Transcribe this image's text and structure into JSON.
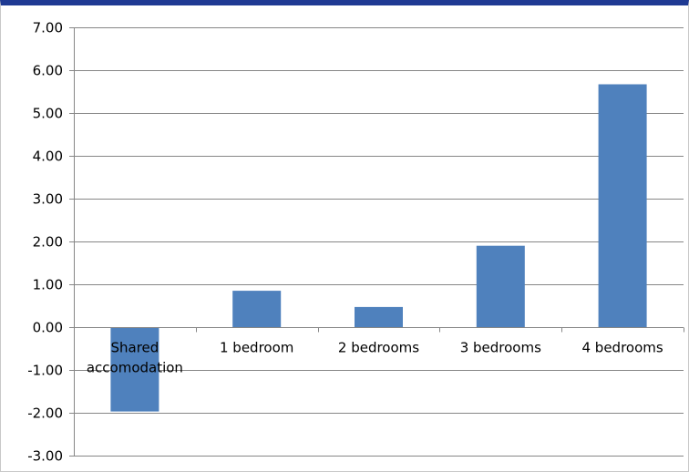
{
  "chart_data": {
    "type": "bar",
    "title": "",
    "xlabel": "",
    "ylabel": "",
    "categories": [
      [
        "Shared",
        "accomodation"
      ],
      [
        "1 bedroom"
      ],
      [
        "2 bedrooms"
      ],
      [
        "3 bedrooms"
      ],
      [
        "4 bedrooms"
      ]
    ],
    "values": [
      -1.97,
      0.85,
      0.47,
      1.9,
      5.67
    ],
    "ylim": [
      -3,
      7
    ],
    "yticks": [
      "-3.00",
      "-2.00",
      "-1.00",
      "0.00",
      "1.00",
      "2.00",
      "3.00",
      "4.00",
      "5.00",
      "6.00",
      "7.00"
    ],
    "grid": true,
    "legend": "none",
    "colors": {
      "bar": "#4f81bd",
      "gridline": "#868686",
      "axis": "#868686",
      "frame_top": "#1f3a93"
    }
  }
}
